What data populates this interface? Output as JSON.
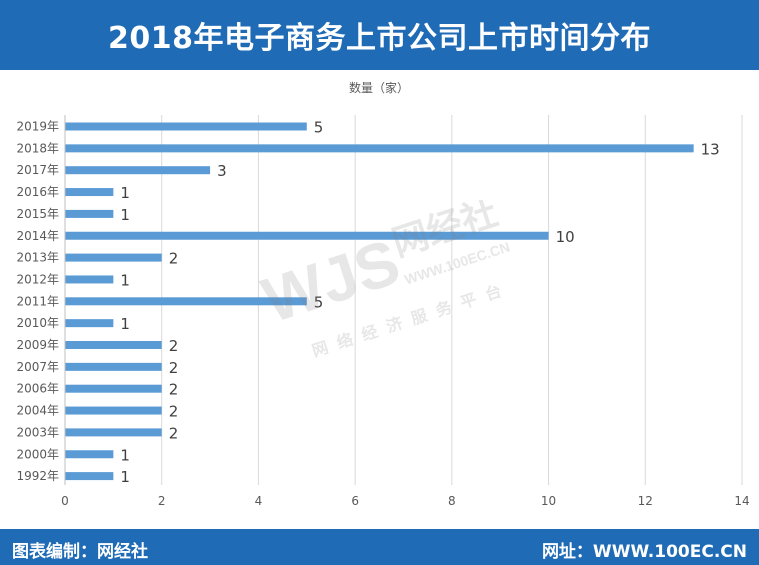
{
  "header": {
    "title": "2018年电子商务上市公司上市时间分布"
  },
  "footer": {
    "left": "图表编制：网经社",
    "right": "网址：WWW.100EC.CN"
  },
  "watermark": {
    "logo": "WJS网经社",
    "url": "WWW.100EC.CN",
    "slogan": "网络经济服务平台"
  },
  "chart_data": {
    "type": "bar",
    "orientation": "horizontal",
    "title": "数量（家）",
    "categories": [
      "2019年",
      "2018年",
      "2017年",
      "2016年",
      "2015年",
      "2014年",
      "2013年",
      "2012年",
      "2011年",
      "2010年",
      "2009年",
      "2007年",
      "2006年",
      "2004年",
      "2003年",
      "2000年",
      "1992年"
    ],
    "values": [
      5,
      13,
      3,
      1,
      1,
      10,
      2,
      1,
      5,
      1,
      2,
      2,
      2,
      2,
      2,
      1,
      1
    ],
    "xlim": [
      0,
      14
    ],
    "xticks": [
      0,
      2,
      4,
      6,
      8,
      10,
      12,
      14
    ],
    "grid": true,
    "bar_color": "#5b9bd5"
  }
}
